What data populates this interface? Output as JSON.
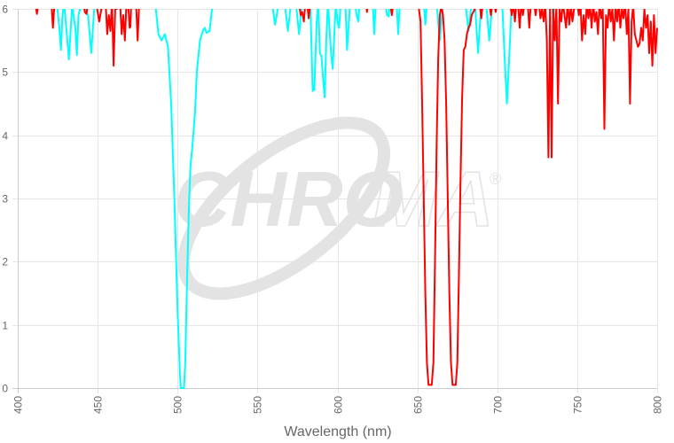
{
  "chart_data": {
    "type": "line",
    "title": "",
    "xlabel": "Wavelength (nm)",
    "ylabel": "",
    "xlim": [
      400,
      800
    ],
    "ylim": [
      0,
      6
    ],
    "x_ticks": [
      "400",
      "450",
      "500",
      "550",
      "600",
      "650",
      "700",
      "750",
      "800"
    ],
    "y_ticks": [
      "0",
      "1",
      "2",
      "3",
      "4",
      "5",
      "6"
    ],
    "grid": true,
    "legend": null,
    "watermark": "CHROMA",
    "watermark_mark": "®",
    "series": [
      {
        "name": "cyan",
        "color": "#00ffff",
        "points": [
          [
            424,
            6.2
          ],
          [
            426,
            5.7
          ],
          [
            427,
            5.35
          ],
          [
            428,
            5.9
          ],
          [
            429,
            6.1
          ],
          [
            430,
            5.8
          ],
          [
            432,
            5.2
          ],
          [
            434,
            6.05
          ],
          [
            436,
            5.7
          ],
          [
            437,
            5.27
          ],
          [
            438,
            5.9
          ],
          [
            440,
            6.1
          ],
          [
            444,
            5.9
          ],
          [
            446,
            5.3
          ],
          [
            448,
            6.05
          ],
          [
            486,
            6.1
          ],
          [
            488,
            5.6
          ],
          [
            490,
            5.5
          ],
          [
            492,
            5.6
          ],
          [
            494,
            5.4
          ],
          [
            496,
            4.5
          ],
          [
            498,
            3.0
          ],
          [
            500,
            1.2
          ],
          [
            501.5,
            0.2
          ],
          [
            502,
            0
          ],
          [
            504,
            0
          ],
          [
            504.8,
            0.4
          ],
          [
            506,
            1.8
          ],
          [
            507,
            2.8
          ],
          [
            508,
            3.5
          ],
          [
            509.5,
            3.9
          ],
          [
            511,
            4.4
          ],
          [
            512,
            5.0
          ],
          [
            514,
            5.5
          ],
          [
            516,
            5.67
          ],
          [
            517,
            5.7
          ],
          [
            518,
            5.62
          ],
          [
            520,
            5.65
          ],
          [
            522,
            6.1
          ],
          [
            559,
            6.1
          ],
          [
            561,
            5.75
          ],
          [
            563,
            6.05
          ],
          [
            567,
            6.1
          ],
          [
            569,
            5.65
          ],
          [
            571,
            6.1
          ],
          [
            574,
            6.1
          ],
          [
            576,
            5.6
          ],
          [
            578,
            6.1
          ],
          [
            583,
            6.1
          ],
          [
            584.5,
            4.7
          ],
          [
            585.5,
            4.72
          ],
          [
            587,
            5.8
          ],
          [
            588,
            6.1
          ],
          [
            589,
            5.3
          ],
          [
            590,
            5.25
          ],
          [
            591,
            4.9
          ],
          [
            592,
            4.6
          ],
          [
            593,
            5.5
          ],
          [
            594,
            6.1
          ],
          [
            596,
            5.3
          ],
          [
            597,
            5.05
          ],
          [
            599,
            6.1
          ],
          [
            600,
            5.8
          ],
          [
            601,
            5.7
          ],
          [
            602,
            6.05
          ],
          [
            605,
            6.1
          ],
          [
            606,
            5.35
          ],
          [
            608,
            6.1
          ],
          [
            611,
            6.1
          ],
          [
            612,
            5.9
          ],
          [
            613,
            5.8
          ],
          [
            614,
            6.1
          ],
          [
            622,
            6.1
          ],
          [
            623,
            5.6
          ],
          [
            624,
            6.1
          ],
          [
            630,
            6.1
          ],
          [
            631,
            5.9
          ],
          [
            632,
            5.88
          ],
          [
            633,
            6.1
          ],
          [
            637,
            6.1
          ],
          [
            638,
            5.6
          ],
          [
            639,
            6.1
          ],
          [
            654,
            6.1
          ],
          [
            655,
            5.75
          ],
          [
            656,
            6.1
          ],
          [
            662,
            6.1
          ],
          [
            664,
            5.5
          ],
          [
            666,
            6.1
          ],
          [
            680,
            6.1
          ],
          [
            682,
            5.65
          ],
          [
            684,
            6.1
          ],
          [
            686,
            6.1
          ],
          [
            688,
            5.3
          ],
          [
            690,
            6.1
          ],
          [
            693,
            6.1
          ],
          [
            695,
            5.5
          ],
          [
            697,
            6.1
          ],
          [
            703,
            6.1
          ],
          [
            705,
            5.0
          ],
          [
            706,
            4.5
          ],
          [
            707,
            5.0
          ],
          [
            709,
            6.1
          ],
          [
            734,
            6.1
          ],
          [
            735,
            5.85
          ],
          [
            736,
            6.1
          ],
          [
            800,
            6.1
          ]
        ]
      },
      {
        "name": "red",
        "color": "#ff0000",
        "points": [
          [
            411,
            6.1
          ],
          [
            412,
            5.92
          ],
          [
            413,
            6.1
          ],
          [
            421,
            6.1
          ],
          [
            422,
            5.7
          ],
          [
            423,
            6.1
          ],
          [
            441,
            6.1
          ],
          [
            442,
            5.95
          ],
          [
            443,
            5.92
          ],
          [
            444,
            6.1
          ],
          [
            449,
            6.1
          ],
          [
            451,
            5.8
          ],
          [
            453,
            6.1
          ],
          [
            455,
            6.1
          ],
          [
            456,
            5.6
          ],
          [
            457,
            5.9
          ],
          [
            458,
            5.65
          ],
          [
            459,
            6.1
          ],
          [
            460,
            5.1
          ],
          [
            461,
            6.05
          ],
          [
            462,
            6.0
          ],
          [
            464,
            6.1
          ],
          [
            465,
            5.6
          ],
          [
            466,
            5.9
          ],
          [
            467,
            5.5
          ],
          [
            468,
            6.1
          ],
          [
            469,
            6.1
          ],
          [
            470,
            5.7
          ],
          [
            470.5,
            5.72
          ],
          [
            471,
            6.1
          ],
          [
            474,
            6.1
          ],
          [
            475,
            5.5
          ],
          [
            476,
            6.1
          ],
          [
            576,
            6.1
          ],
          [
            577,
            5.9
          ],
          [
            578,
            5.95
          ],
          [
            579,
            5.8
          ],
          [
            580,
            6.1
          ],
          [
            581,
            6.1
          ],
          [
            582,
            5.85
          ],
          [
            583,
            6.1
          ],
          [
            618,
            6.1
          ],
          [
            618.5,
            5.95
          ],
          [
            619,
            6.1
          ],
          [
            633,
            6.1
          ],
          [
            634,
            5.9
          ],
          [
            635,
            6.1
          ],
          [
            649,
            6.1
          ],
          [
            651,
            6.0
          ],
          [
            652,
            5.8
          ],
          [
            653,
            4.5
          ],
          [
            654,
            3.0
          ],
          [
            655,
            1.5
          ],
          [
            656,
            0.4
          ],
          [
            657,
            0.05
          ],
          [
            659,
            0.05
          ],
          [
            660,
            0.4
          ],
          [
            661,
            2.0
          ],
          [
            662,
            3.8
          ],
          [
            663,
            5.2
          ],
          [
            664,
            5.9
          ],
          [
            665,
            6.05
          ],
          [
            666,
            5.9
          ],
          [
            667,
            5.5
          ],
          [
            668,
            4.5
          ],
          [
            669,
            3.0
          ],
          [
            670,
            1.5
          ],
          [
            671,
            0.4
          ],
          [
            672,
            0.05
          ],
          [
            674,
            0.05
          ],
          [
            675,
            0.4
          ],
          [
            676,
            1.8
          ],
          [
            677,
            3.3
          ],
          [
            678,
            4.6
          ],
          [
            679,
            5.35
          ],
          [
            680,
            5.4
          ],
          [
            681,
            5.6
          ],
          [
            682,
            5.7
          ],
          [
            683,
            5.75
          ],
          [
            684,
            5.9
          ],
          [
            685,
            5.95
          ],
          [
            686,
            6.0
          ],
          [
            687,
            6.1
          ],
          [
            689,
            6.1
          ],
          [
            690,
            5.85
          ],
          [
            691,
            6.1
          ],
          [
            695,
            6.1
          ],
          [
            696,
            5.9
          ],
          [
            697,
            6.1
          ],
          [
            698,
            6.1
          ],
          [
            699,
            5.95
          ],
          [
            700,
            6.1
          ],
          [
            708,
            6.1
          ],
          [
            709,
            5.9
          ],
          [
            710,
            6.1
          ],
          [
            711,
            5.8
          ],
          [
            712,
            6.1
          ],
          [
            713,
            6.1
          ],
          [
            714,
            5.7
          ],
          [
            715,
            6.1
          ],
          [
            716,
            5.9
          ],
          [
            717,
            6.1
          ],
          [
            719,
            6.1
          ],
          [
            720,
            5.7
          ],
          [
            721,
            6.1
          ],
          [
            723,
            6.1
          ],
          [
            724,
            5.9
          ],
          [
            725,
            6.1
          ],
          [
            726,
            6.1
          ],
          [
            727,
            5.85
          ],
          [
            728,
            6.0
          ],
          [
            729,
            5.8
          ],
          [
            730,
            6.1
          ],
          [
            731,
            5.5
          ],
          [
            732,
            3.65
          ],
          [
            733,
            6.0
          ],
          [
            734,
            3.65
          ],
          [
            735,
            6.0
          ],
          [
            736,
            5.5
          ],
          [
            737,
            6.05
          ],
          [
            738,
            4.5
          ],
          [
            739,
            6.0
          ],
          [
            740,
            5.8
          ],
          [
            741,
            6.1
          ],
          [
            742,
            5.9
          ],
          [
            743,
            5.7
          ],
          [
            744,
            6.1
          ],
          [
            745,
            5.75
          ],
          [
            746,
            6.05
          ],
          [
            747,
            5.8
          ],
          [
            748,
            6.0
          ],
          [
            750,
            6.1
          ],
          [
            751,
            5.9
          ],
          [
            752,
            6.1
          ],
          [
            753,
            5.5
          ],
          [
            754,
            5.9
          ],
          [
            755,
            5.6
          ],
          [
            756,
            6.1
          ],
          [
            757,
            5.85
          ],
          [
            758,
            6.05
          ],
          [
            759,
            5.7
          ],
          [
            760,
            6.1
          ],
          [
            761,
            5.8
          ],
          [
            762,
            5.95
          ],
          [
            763,
            5.6
          ],
          [
            764,
            6.1
          ],
          [
            765,
            5.85
          ],
          [
            766,
            6.0
          ],
          [
            767,
            4.1
          ],
          [
            768,
            5.9
          ],
          [
            769,
            5.7
          ],
          [
            770,
            6.1
          ],
          [
            771,
            5.8
          ],
          [
            772,
            6.0
          ],
          [
            773,
            5.5
          ],
          [
            774,
            6.05
          ],
          [
            775,
            5.8
          ],
          [
            776,
            6.1
          ],
          [
            777,
            5.7
          ],
          [
            778,
            6.0
          ],
          [
            779,
            5.85
          ],
          [
            780,
            6.1
          ],
          [
            781,
            5.6
          ],
          [
            782,
            6.0
          ],
          [
            783,
            4.5
          ],
          [
            784,
            5.8
          ],
          [
            785,
            6.05
          ],
          [
            786,
            5.6
          ],
          [
            787,
            5.5
          ],
          [
            788,
            5.4
          ],
          [
            789,
            5.45
          ],
          [
            790,
            5.7
          ],
          [
            791,
            5.5
          ],
          [
            792,
            6.0
          ],
          [
            793,
            5.7
          ],
          [
            794,
            5.9
          ],
          [
            795,
            5.3
          ],
          [
            796,
            5.8
          ],
          [
            797,
            5.1
          ],
          [
            798,
            5.9
          ],
          [
            799,
            5.3
          ],
          [
            800,
            5.7
          ]
        ]
      }
    ]
  }
}
